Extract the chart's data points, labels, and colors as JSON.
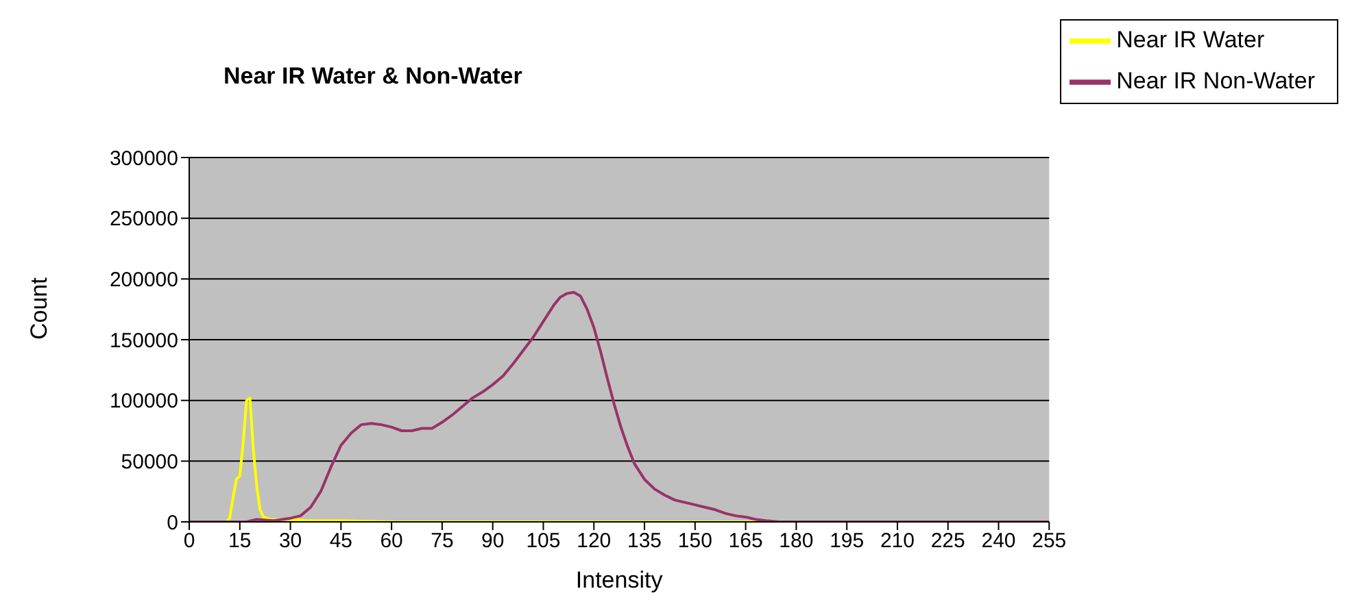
{
  "chart_data": {
    "type": "line",
    "title": "Near IR Water & Non-Water",
    "xlabel": "Intensity",
    "ylabel": "Count",
    "xlim": [
      0,
      255
    ],
    "xticks": [
      0,
      15,
      30,
      45,
      60,
      75,
      90,
      105,
      120,
      135,
      150,
      165,
      180,
      195,
      210,
      225,
      240,
      255
    ],
    "ylim": [
      0,
      300000
    ],
    "yticks": [
      0,
      50000,
      100000,
      150000,
      200000,
      250000,
      300000
    ],
    "grid": "y",
    "legend": "top right",
    "marker": "none",
    "line_style": "solid",
    "series": [
      {
        "name": "Near IR Water",
        "color": "#ffff00",
        "x": [
          0,
          11,
          12,
          13,
          14,
          15,
          16,
          17,
          18,
          19,
          20,
          21,
          22,
          24,
          27,
          30,
          35,
          45,
          60,
          80,
          120,
          170,
          255
        ],
        "values": [
          0,
          0,
          3000,
          20000,
          35000,
          38000,
          65000,
          100000,
          102000,
          60000,
          30000,
          10000,
          4000,
          2000,
          2000,
          2000,
          1000,
          1000,
          0,
          0,
          0,
          0,
          0
        ]
      },
      {
        "name": "Near IR Non-Water",
        "color": "#993366",
        "x": [
          0,
          17,
          20,
          25,
          30,
          33,
          36,
          39,
          42,
          45,
          48,
          51,
          54,
          57,
          60,
          63,
          66,
          69,
          72,
          75,
          78,
          81,
          84,
          87,
          90,
          93,
          96,
          99,
          102,
          105,
          108,
          110,
          112,
          114,
          116,
          118,
          120,
          122,
          124,
          126,
          128,
          130,
          132,
          135,
          138,
          141,
          144,
          147,
          150,
          153,
          156,
          159,
          162,
          165,
          168,
          171,
          175,
          255
        ],
        "values": [
          0,
          0,
          2000,
          1000,
          3000,
          5000,
          12000,
          25000,
          45000,
          63000,
          73000,
          80000,
          81000,
          80000,
          78000,
          75000,
          75000,
          77000,
          77000,
          82000,
          88000,
          95000,
          102000,
          107000,
          113000,
          120000,
          130000,
          141000,
          152000,
          165000,
          178000,
          185000,
          188000,
          189000,
          186000,
          175000,
          160000,
          140000,
          118000,
          97000,
          78000,
          62000,
          48000,
          35000,
          27000,
          22000,
          18000,
          16000,
          14000,
          12000,
          10000,
          7000,
          5000,
          4000,
          2000,
          1000,
          0,
          0
        ]
      }
    ]
  }
}
